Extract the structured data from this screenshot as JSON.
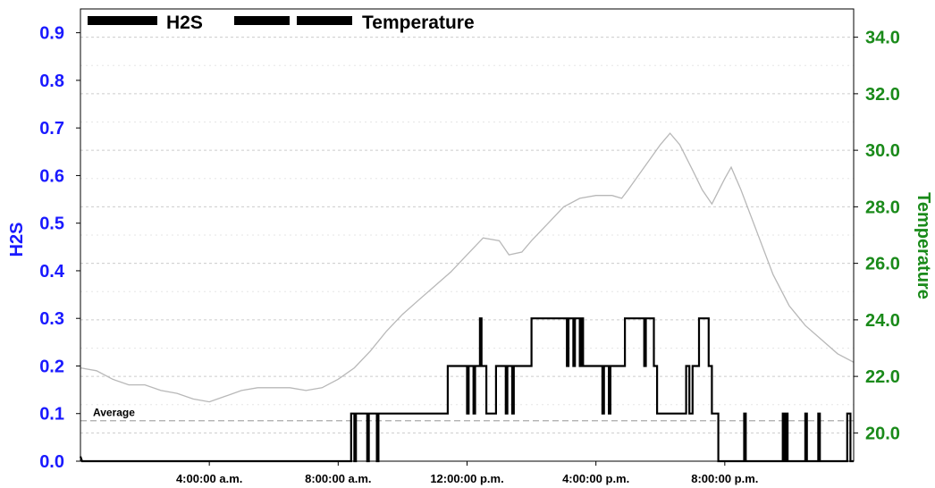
{
  "chart_data": {
    "type": "line",
    "legend": {
      "placement": "top-left",
      "entries": [
        {
          "label": "H2S",
          "style": "solid",
          "color": "#000000"
        },
        {
          "label": "Temperature",
          "style": "dashed",
          "color": "#000000"
        }
      ]
    },
    "y_left": {
      "label": "H2S",
      "color": "#1a1aff",
      "range": [
        0,
        0.95
      ],
      "ticks": [
        "0.0",
        "0.1",
        "0.2",
        "0.3",
        "0.4",
        "0.5",
        "0.6",
        "0.7",
        "0.8",
        "0.9"
      ]
    },
    "y_right": {
      "label": "Temperature",
      "color": "#1a8a1a",
      "range": [
        19.0,
        35.0
      ],
      "ticks": [
        "20.0",
        "22.0",
        "24.0",
        "26.0",
        "28.0",
        "30.0",
        "32.0",
        "34.0"
      ]
    },
    "x_axis": {
      "range": [
        0,
        24
      ],
      "ticks": [
        {
          "x": 4,
          "label": "4:00:00 a.m."
        },
        {
          "x": 8,
          "label": "8:00:00 a.m."
        },
        {
          "x": 12,
          "label": "12:00:00 p.m."
        },
        {
          "x": 16,
          "label": "4:00:00 p.m."
        },
        {
          "x": 20,
          "label": "8:00:00 p.m."
        }
      ]
    },
    "grid": true,
    "annotations": [
      {
        "text": "Average",
        "y_left": 0.085
      }
    ],
    "series": [
      {
        "name": "Temperature",
        "axis": "right",
        "color": "#b8b8b8",
        "points": [
          [
            0.0,
            22.3
          ],
          [
            0.5,
            22.2
          ],
          [
            1.0,
            21.9
          ],
          [
            1.5,
            21.7
          ],
          [
            2.0,
            21.7
          ],
          [
            2.5,
            21.5
          ],
          [
            3.0,
            21.4
          ],
          [
            3.5,
            21.2
          ],
          [
            4.0,
            21.1
          ],
          [
            4.5,
            21.3
          ],
          [
            5.0,
            21.5
          ],
          [
            5.5,
            21.6
          ],
          [
            6.0,
            21.6
          ],
          [
            6.5,
            21.6
          ],
          [
            7.0,
            21.5
          ],
          [
            7.5,
            21.6
          ],
          [
            8.0,
            21.9
          ],
          [
            8.5,
            22.3
          ],
          [
            9.0,
            22.9
          ],
          [
            9.5,
            23.6
          ],
          [
            10.0,
            24.2
          ],
          [
            10.5,
            24.7
          ],
          [
            11.0,
            25.2
          ],
          [
            11.5,
            25.7
          ],
          [
            12.0,
            26.3
          ],
          [
            12.5,
            26.9
          ],
          [
            13.0,
            26.8
          ],
          [
            13.3,
            26.3
          ],
          [
            13.7,
            26.4
          ],
          [
            14.0,
            26.8
          ],
          [
            14.5,
            27.4
          ],
          [
            15.0,
            28.0
          ],
          [
            15.5,
            28.3
          ],
          [
            16.0,
            28.4
          ],
          [
            16.5,
            28.4
          ],
          [
            16.8,
            28.3
          ],
          [
            17.0,
            28.6
          ],
          [
            17.5,
            29.4
          ],
          [
            18.0,
            30.2
          ],
          [
            18.3,
            30.6
          ],
          [
            18.6,
            30.2
          ],
          [
            19.0,
            29.3
          ],
          [
            19.3,
            28.6
          ],
          [
            19.6,
            28.1
          ],
          [
            20.0,
            29.0
          ],
          [
            20.2,
            29.4
          ],
          [
            20.5,
            28.6
          ],
          [
            21.0,
            27.1
          ],
          [
            21.5,
            25.6
          ],
          [
            22.0,
            24.5
          ],
          [
            22.5,
            23.8
          ],
          [
            23.0,
            23.3
          ],
          [
            23.5,
            22.8
          ],
          [
            24.0,
            22.5
          ]
        ]
      },
      {
        "name": "H2S",
        "axis": "left",
        "color": "#000000",
        "points": [
          [
            0.0,
            0.01
          ],
          [
            0.05,
            0.0
          ],
          [
            8.4,
            0.0
          ],
          [
            8.4,
            0.1
          ],
          [
            8.5,
            0.1
          ],
          [
            8.5,
            0.0
          ],
          [
            8.55,
            0.0
          ],
          [
            8.55,
            0.1
          ],
          [
            8.9,
            0.1
          ],
          [
            8.9,
            0.0
          ],
          [
            8.95,
            0.0
          ],
          [
            8.95,
            0.1
          ],
          [
            9.2,
            0.1
          ],
          [
            9.2,
            0.0
          ],
          [
            9.25,
            0.0
          ],
          [
            9.25,
            0.1
          ],
          [
            11.4,
            0.1
          ],
          [
            11.4,
            0.2
          ],
          [
            12.0,
            0.2
          ],
          [
            12.0,
            0.1
          ],
          [
            12.05,
            0.1
          ],
          [
            12.05,
            0.2
          ],
          [
            12.2,
            0.2
          ],
          [
            12.2,
            0.1
          ],
          [
            12.25,
            0.1
          ],
          [
            12.25,
            0.2
          ],
          [
            12.4,
            0.2
          ],
          [
            12.4,
            0.3
          ],
          [
            12.45,
            0.3
          ],
          [
            12.45,
            0.2
          ],
          [
            12.6,
            0.2
          ],
          [
            12.6,
            0.1
          ],
          [
            12.9,
            0.1
          ],
          [
            12.9,
            0.2
          ],
          [
            13.2,
            0.2
          ],
          [
            13.2,
            0.1
          ],
          [
            13.25,
            0.1
          ],
          [
            13.25,
            0.2
          ],
          [
            13.4,
            0.2
          ],
          [
            13.4,
            0.1
          ],
          [
            13.45,
            0.1
          ],
          [
            13.45,
            0.2
          ],
          [
            14.0,
            0.2
          ],
          [
            14.0,
            0.3
          ],
          [
            15.1,
            0.3
          ],
          [
            15.1,
            0.2
          ],
          [
            15.15,
            0.2
          ],
          [
            15.15,
            0.3
          ],
          [
            15.3,
            0.3
          ],
          [
            15.3,
            0.2
          ],
          [
            15.35,
            0.2
          ],
          [
            15.35,
            0.3
          ],
          [
            15.5,
            0.3
          ],
          [
            15.5,
            0.2
          ],
          [
            15.55,
            0.2
          ],
          [
            15.55,
            0.3
          ],
          [
            15.6,
            0.3
          ],
          [
            15.6,
            0.2
          ],
          [
            16.2,
            0.2
          ],
          [
            16.2,
            0.1
          ],
          [
            16.25,
            0.1
          ],
          [
            16.25,
            0.2
          ],
          [
            16.4,
            0.2
          ],
          [
            16.4,
            0.1
          ],
          [
            16.45,
            0.1
          ],
          [
            16.45,
            0.2
          ],
          [
            16.9,
            0.2
          ],
          [
            16.9,
            0.3
          ],
          [
            17.5,
            0.3
          ],
          [
            17.5,
            0.2
          ],
          [
            17.55,
            0.2
          ],
          [
            17.55,
            0.3
          ],
          [
            17.8,
            0.3
          ],
          [
            17.8,
            0.2
          ],
          [
            17.9,
            0.2
          ],
          [
            17.9,
            0.1
          ],
          [
            18.8,
            0.1
          ],
          [
            18.8,
            0.2
          ],
          [
            18.9,
            0.2
          ],
          [
            18.9,
            0.1
          ],
          [
            19.0,
            0.1
          ],
          [
            19.0,
            0.2
          ],
          [
            19.2,
            0.2
          ],
          [
            19.2,
            0.3
          ],
          [
            19.5,
            0.3
          ],
          [
            19.5,
            0.2
          ],
          [
            19.6,
            0.2
          ],
          [
            19.6,
            0.1
          ],
          [
            19.8,
            0.1
          ],
          [
            19.8,
            0.0
          ],
          [
            20.6,
            0.0
          ],
          [
            20.6,
            0.1
          ],
          [
            20.65,
            0.1
          ],
          [
            20.65,
            0.0
          ],
          [
            21.8,
            0.0
          ],
          [
            21.8,
            0.1
          ],
          [
            21.85,
            0.1
          ],
          [
            21.85,
            0.0
          ],
          [
            21.9,
            0.0
          ],
          [
            21.9,
            0.1
          ],
          [
            21.95,
            0.1
          ],
          [
            21.95,
            0.0
          ],
          [
            22.5,
            0.0
          ],
          [
            22.5,
            0.1
          ],
          [
            22.55,
            0.1
          ],
          [
            22.55,
            0.0
          ],
          [
            22.9,
            0.0
          ],
          [
            22.9,
            0.1
          ],
          [
            22.95,
            0.1
          ],
          [
            22.95,
            0.0
          ],
          [
            23.8,
            0.0
          ],
          [
            23.8,
            0.1
          ],
          [
            23.9,
            0.1
          ],
          [
            23.9,
            0.0
          ],
          [
            24.0,
            0.0
          ]
        ]
      }
    ]
  }
}
